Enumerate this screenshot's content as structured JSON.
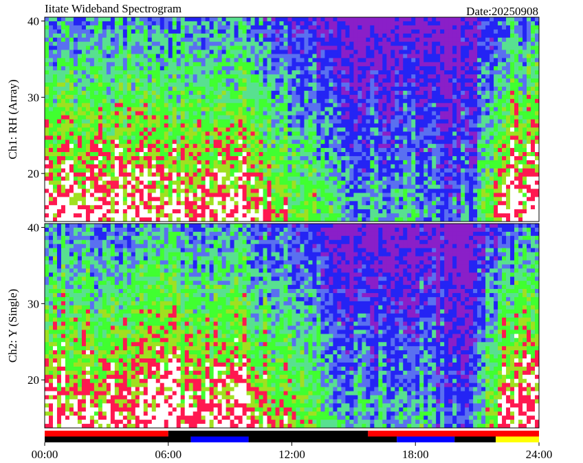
{
  "title": "Iitate Wideband Spectrogram",
  "date": "Date:20250908",
  "chart_data": [
    {
      "type": "spectrogram",
      "ylabel": "Ch1: RH (Array)",
      "xlim": [
        0,
        24
      ],
      "ylim": [
        13.7,
        40.5
      ],
      "yticks": [
        20,
        30,
        40
      ]
    },
    {
      "type": "spectrogram",
      "ylabel": "Ch2: Y (Single)",
      "xlim": [
        0,
        24
      ],
      "ylim": [
        13.7,
        40.5
      ],
      "yticks": [
        20,
        30,
        40
      ],
      "xticks": [
        {
          "value": 0,
          "label": "00:00"
        },
        {
          "value": 6,
          "label": "06:00"
        },
        {
          "value": 12,
          "label": "12:00"
        },
        {
          "value": 18,
          "label": "18:00"
        },
        {
          "value": 24,
          "label": "24:00"
        }
      ]
    },
    {
      "type": "timeline",
      "xlim": [
        0,
        24
      ],
      "rows": [
        [
          {
            "start": 0,
            "end": 6,
            "color": "#ff0000"
          },
          {
            "start": 6,
            "end": 15.7,
            "color": "#000000"
          },
          {
            "start": 15.7,
            "end": 24,
            "color": "#ff0000"
          }
        ],
        [
          {
            "start": 0,
            "end": 7.1,
            "color": "#000000"
          },
          {
            "start": 7.1,
            "end": 9.9,
            "color": "#0000ff"
          },
          {
            "start": 9.9,
            "end": 17.1,
            "color": "#000000"
          },
          {
            "start": 17.1,
            "end": 19.9,
            "color": "#0000ff"
          },
          {
            "start": 19.9,
            "end": 21.9,
            "color": "#000000"
          },
          {
            "start": 21.9,
            "end": 24,
            "color": "#ffff00"
          }
        ]
      ]
    }
  ]
}
